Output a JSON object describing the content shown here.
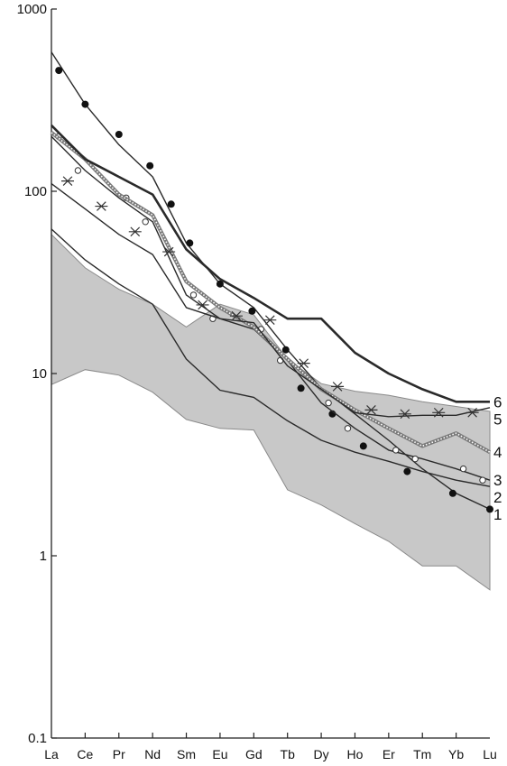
{
  "chart_data": {
    "type": "line",
    "title": "",
    "xlabel": "",
    "ylabel": "",
    "y_scale": "log",
    "ylim": [
      0.1,
      1000
    ],
    "y_ticks": [
      0.1,
      1,
      10,
      100,
      1000
    ],
    "y_tick_labels": [
      "0.1",
      "1",
      "10",
      "100",
      "1000"
    ],
    "grid": false,
    "categories": [
      "La",
      "Ce",
      "Pr",
      "Nd",
      "Sm",
      "Eu",
      "Gd",
      "Tb",
      "Dy",
      "Ho",
      "Er",
      "Tm",
      "Yb",
      "Lu"
    ],
    "colors": {
      "line": "#2a2a2a",
      "band_fill": "#c8c8c8",
      "band_stroke": "#8a8a8a",
      "series4": "#7a7a7a"
    },
    "band": {
      "upper": [
        58,
        38,
        29,
        24,
        18,
        24,
        21,
        12,
        8.8,
        8.0,
        7.6,
        7.0,
        6.6,
        6.2
      ],
      "lower": [
        8.7,
        10.5,
        9.8,
        7.9,
        5.6,
        5.0,
        4.9,
        2.3,
        1.9,
        1.5,
        1.2,
        0.88,
        0.88,
        0.65
      ]
    },
    "series": [
      {
        "label": "1",
        "marker": "filled-circle",
        "values": [
          580,
          300,
          180,
          120,
          52,
          31,
          23,
          13.5,
          8.3,
          6.0,
          4.3,
          3.0,
          2.2,
          1.8
        ],
        "marker_points": [
          [
            0.22,
            460
          ],
          [
            1,
            300
          ],
          [
            2,
            205
          ],
          [
            2.92,
            138
          ],
          [
            3.55,
            85
          ],
          [
            4.1,
            52
          ],
          [
            5,
            31
          ],
          [
            5.95,
            22
          ],
          [
            6.95,
            13.5
          ],
          [
            7.4,
            8.3
          ],
          [
            8.33,
            6.0
          ],
          [
            9.25,
            4.0
          ],
          [
            10.55,
            2.9
          ],
          [
            11.9,
            2.2
          ],
          [
            13,
            1.8
          ]
        ]
      },
      {
        "label": "2",
        "marker": "none",
        "values": [
          62,
          42,
          31,
          24,
          12,
          8.1,
          7.4,
          5.5,
          4.3,
          3.7,
          3.3,
          2.9,
          2.6,
          2.4
        ]
      },
      {
        "label": "3",
        "marker": "open-circle",
        "values": [
          200,
          130,
          92,
          68,
          27,
          20,
          17.5,
          11.8,
          6.9,
          5.0,
          3.8,
          3.4,
          3.0,
          2.6
        ]
      },
      {
        "label": "4",
        "marker": "dotted-band",
        "values": [
          210,
          150,
          96,
          74,
          32,
          23,
          18,
          12,
          8.2,
          6.3,
          5.0,
          4.0,
          4.7,
          3.7
        ]
      },
      {
        "label": "5",
        "marker": "star",
        "values": [
          110,
          80,
          58,
          45,
          23,
          20,
          19,
          11,
          8.2,
          6.1,
          5.8,
          5.9,
          5.9,
          6.5
        ]
      },
      {
        "label": "6",
        "marker": "none",
        "bold": true,
        "values": [
          230,
          150,
          120,
          96,
          48,
          33,
          26,
          20,
          20,
          13,
          10,
          8.2,
          7.0,
          7.0
        ]
      }
    ]
  }
}
